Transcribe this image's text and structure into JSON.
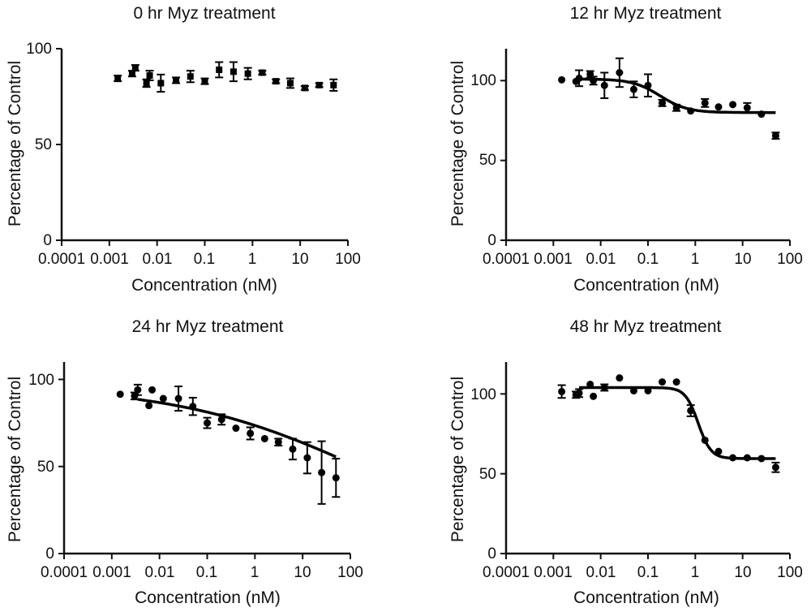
{
  "chart_data": [
    {
      "type": "scatter",
      "title": "0 hr Myz treatment",
      "xlabel": "Concentration (nM)",
      "ylabel": "Percentage of Control",
      "xscale": "log",
      "xlim": [
        0.0001,
        100
      ],
      "ylim": [
        0,
        100
      ],
      "x_ticks": [
        "0.0001",
        "0.001",
        "0.01",
        "0.1",
        "1",
        "10",
        "100"
      ],
      "y_ticks": [
        "0",
        "50",
        "100"
      ],
      "marker": "square",
      "fit_curve": null,
      "series": [
        {
          "name": "0 hr",
          "x": [
            0.0035,
            0.007,
            0.0015,
            0.003,
            0.006,
            0.012,
            0.025,
            0.05,
            0.1,
            0.2,
            0.4,
            0.8,
            1.6,
            3.1,
            6.2,
            12.5,
            25,
            50
          ],
          "y": [
            90,
            86,
            84.5,
            87,
            82,
            82,
            83.5,
            85.5,
            83,
            89,
            88,
            87,
            87.5,
            83,
            82,
            79.5,
            81,
            81
          ],
          "err": [
            1.5,
            2.5,
            1.5,
            1.5,
            2,
            4.5,
            1.5,
            3,
            1.5,
            4,
            5,
            3,
            1,
            1,
            2.5,
            1,
            1,
            3
          ]
        }
      ]
    },
    {
      "type": "scatter",
      "title": "12 hr Myz treatment",
      "xlabel": "Concentration (nM)",
      "ylabel": "Percentage of Control",
      "xscale": "log",
      "xlim": [
        0.0001,
        100
      ],
      "ylim": [
        0,
        120
      ],
      "x_ticks": [
        "0.0001",
        "0.001",
        "0.01",
        "0.1",
        "1",
        "10",
        "100"
      ],
      "y_ticks": [
        "0",
        "50",
        "100"
      ],
      "marker": "circle",
      "fit_curve": {
        "type": "4pl",
        "top": 101,
        "bottom": 80,
        "ec50": 0.18,
        "hill": 1.5,
        "x_range": [
          0.0035,
          50
        ]
      },
      "series": [
        {
          "name": "12 hr",
          "x": [
            0.0035,
            0.007,
            0.0015,
            0.003,
            0.006,
            0.012,
            0.025,
            0.05,
            0.1,
            0.2,
            0.4,
            0.8,
            1.6,
            3.1,
            6.2,
            12.5,
            25,
            50
          ],
          "y": [
            101.5,
            100,
            100.5,
            99.5,
            104,
            97,
            105,
            94.5,
            97,
            86,
            83,
            81,
            86,
            83.5,
            85,
            83,
            79,
            65.5
          ],
          "err": [
            5,
            2.5,
            0,
            0,
            2,
            8,
            9,
            5,
            7,
            2,
            2,
            0,
            2.5,
            0,
            0,
            3,
            0,
            2
          ]
        }
      ]
    },
    {
      "type": "scatter",
      "title": "24 hr Myz treatment",
      "xlabel": "Concentration (nM)",
      "ylabel": "Percentage of Control",
      "xscale": "log",
      "xlim": [
        0.0001,
        100
      ],
      "ylim": [
        0,
        110
      ],
      "x_ticks": [
        "0.0001",
        "0.001",
        "0.01",
        "0.1",
        "1",
        "10",
        "100"
      ],
      "y_ticks": [
        "0",
        "50",
        "100"
      ],
      "marker": "circle",
      "fit_curve": {
        "type": "4pl",
        "top": 96.5,
        "bottom": 0,
        "ec50": 200,
        "hill": 0.22,
        "x_range": [
          0.0035,
          50
        ]
      },
      "series": [
        {
          "name": "24 hr",
          "x": [
            0.0035,
            0.007,
            0.0015,
            0.003,
            0.006,
            0.012,
            0.025,
            0.05,
            0.1,
            0.2,
            0.4,
            0.8,
            1.6,
            3.1,
            6.2,
            12.5,
            25,
            50
          ],
          "y": [
            94,
            94,
            91.5,
            90.5,
            85,
            89,
            89,
            84.5,
            75,
            77,
            72,
            69,
            66,
            64,
            60,
            55,
            46.5,
            43.5
          ],
          "err": [
            3,
            0,
            0,
            2,
            0,
            0,
            7,
            5,
            3,
            3,
            0,
            3.5,
            0,
            2,
            6,
            9,
            18,
            11
          ]
        }
      ]
    },
    {
      "type": "scatter",
      "title": "48 hr Myz treatment",
      "xlabel": "Concentration (nM)",
      "ylabel": "Percentage of Control",
      "xscale": "log",
      "xlim": [
        0.0001,
        100
      ],
      "ylim": [
        0,
        120
      ],
      "x_ticks": [
        "0.0001",
        "0.001",
        "0.01",
        "0.1",
        "1",
        "10",
        "100"
      ],
      "y_ticks": [
        "0",
        "50",
        "100"
      ],
      "marker": "circle",
      "fit_curve": {
        "type": "4pl",
        "top": 104,
        "bottom": 59.5,
        "ec50": 1.15,
        "hill": 3.2,
        "x_range": [
          0.0035,
          50
        ]
      },
      "series": [
        {
          "name": "48 hr",
          "x": [
            0.0035,
            0.007,
            0.0015,
            0.003,
            0.006,
            0.012,
            0.025,
            0.05,
            0.1,
            0.2,
            0.4,
            0.8,
            1.6,
            3.1,
            6.2,
            12.5,
            25,
            50
          ],
          "y": [
            100.5,
            98.5,
            101.5,
            99.5,
            106,
            104,
            110,
            102,
            102,
            107.5,
            107.5,
            89.5,
            71,
            64,
            60,
            60,
            59.5,
            54
          ],
          "err": [
            2.5,
            0,
            4,
            2,
            0,
            2,
            0,
            0,
            0,
            0,
            0,
            3.5,
            0,
            0,
            0,
            0,
            0,
            3
          ]
        }
      ]
    }
  ]
}
